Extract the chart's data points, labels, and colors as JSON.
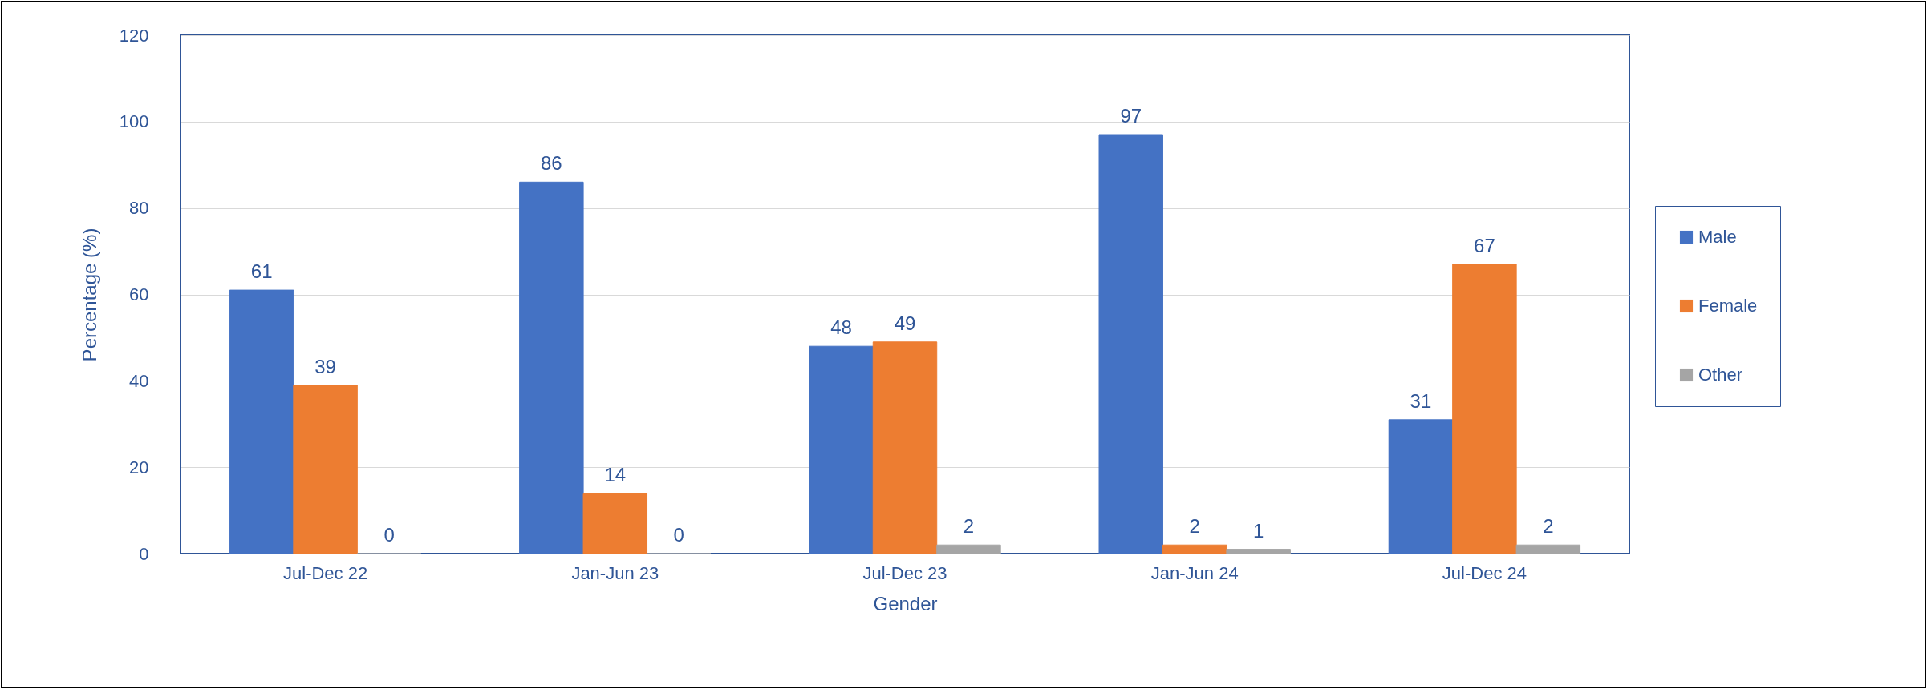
{
  "chart_data": {
    "type": "bar",
    "xlabel": "Gender",
    "ylabel": "Percentage (%)",
    "categories": [
      "Jul-Dec 22",
      "Jan-Jun 23",
      "Jul-Dec 23",
      "Jan-Jun 24",
      "Jul-Dec 24"
    ],
    "series": [
      {
        "name": "Male",
        "color": "#4472c4",
        "values": [
          61,
          86,
          48,
          97,
          31
        ]
      },
      {
        "name": "Female",
        "color": "#ed7d31",
        "values": [
          39,
          14,
          49,
          2,
          67
        ]
      },
      {
        "name": "Other",
        "color": "#a5a5a5",
        "values": [
          0,
          0,
          2,
          1,
          2
        ]
      }
    ],
    "ylim": [
      0,
      120
    ],
    "yticks": [
      0,
      20,
      40,
      60,
      80,
      100,
      120
    ],
    "grid": "y",
    "legend": "right",
    "data_labels": true
  }
}
